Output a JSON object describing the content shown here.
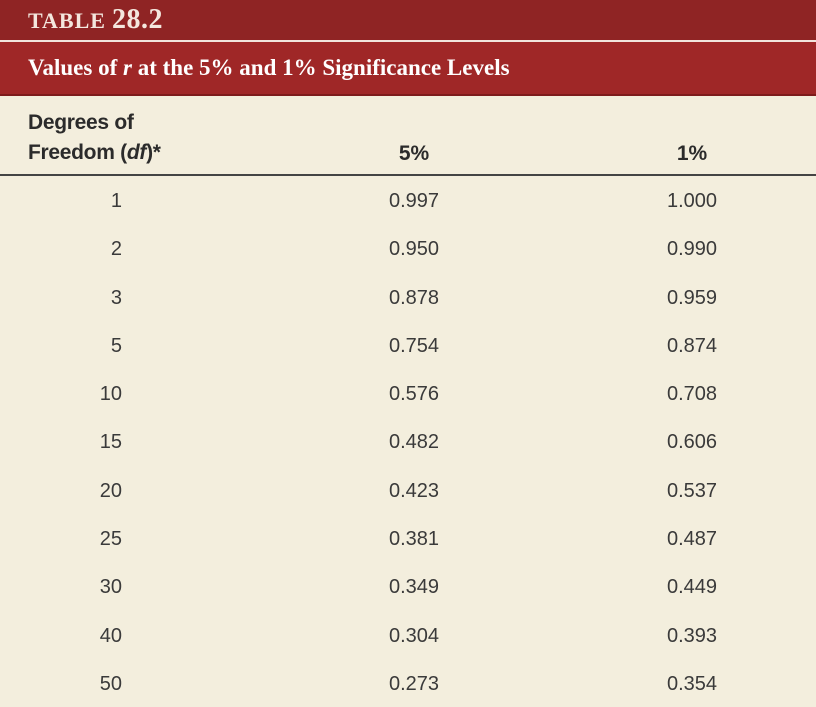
{
  "table": {
    "label_word": "TABLE",
    "label_number": "28.2",
    "caption_before": "Values of ",
    "caption_var": "r",
    "caption_after": " at the 5% and 1% Significance Levels",
    "headers": {
      "df_line1": "Degrees of",
      "df_line2_prefix": "Freedom (",
      "df_line2_var": "df",
      "df_line2_suffix": ")*",
      "col_5": "5%",
      "col_1": "1%"
    },
    "rows": [
      {
        "df": "1",
        "p5": "0.997",
        "p1": "1.000"
      },
      {
        "df": "2",
        "p5": "0.950",
        "p1": "0.990"
      },
      {
        "df": "3",
        "p5": "0.878",
        "p1": "0.959"
      },
      {
        "df": "5",
        "p5": "0.754",
        "p1": "0.874"
      },
      {
        "df": "10",
        "p5": "0.576",
        "p1": "0.708"
      },
      {
        "df": "15",
        "p5": "0.482",
        "p1": "0.606"
      },
      {
        "df": "20",
        "p5": "0.423",
        "p1": "0.537"
      },
      {
        "df": "25",
        "p5": "0.381",
        "p1": "0.487"
      },
      {
        "df": "30",
        "p5": "0.349",
        "p1": "0.449"
      },
      {
        "df": "40",
        "p5": "0.304",
        "p1": "0.393"
      },
      {
        "df": "50",
        "p5": "0.273",
        "p1": "0.354"
      }
    ]
  }
}
